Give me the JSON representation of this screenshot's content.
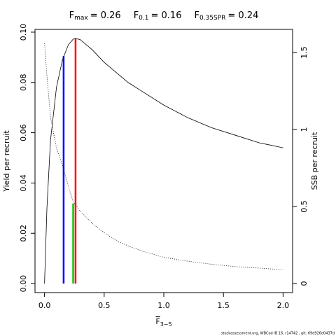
{
  "chart_data": {
    "type": "line",
    "title_items": [
      {
        "symbol": "F",
        "sub": "max",
        "text": "= 0.26"
      },
      {
        "symbol": "F",
        "sub": "0.1",
        "text": "= 0.16"
      },
      {
        "symbol": "F",
        "sub": "0.35SPR",
        "text": "= 0.24"
      }
    ],
    "xlabel": {
      "symbol": "F",
      "sub": "3−5"
    },
    "ylabel": "Yield per recruit",
    "y2label": "SSB per recruit",
    "footnote": "stockassessment.org, WBCod IB 16, r14742 , git: 69d926d0437d",
    "x": [
      0,
      0.02,
      0.05,
      0.1,
      0.15,
      0.2,
      0.24,
      0.26,
      0.3,
      0.4,
      0.5,
      0.6,
      0.7,
      0.8,
      1.0,
      1.2,
      1.4,
      1.6,
      1.8,
      2.0
    ],
    "series": [
      {
        "color": "#000000",
        "dash": "solid",
        "axis": "y",
        "values": [
          0,
          0.03,
          0.057,
          0.078,
          0.089,
          0.095,
          0.0972,
          0.0975,
          0.097,
          0.093,
          0.088,
          0.084,
          0.08,
          0.077,
          0.071,
          0.066,
          0.062,
          0.059,
          0.056,
          0.054
        ]
      },
      {
        "color": "#000000",
        "dash": "dotted",
        "axis": "y2",
        "values": [
          1.56,
          1.35,
          1.08,
          0.88,
          0.77,
          0.63,
          0.53,
          0.51,
          0.47,
          0.39,
          0.33,
          0.28,
          0.245,
          0.215,
          0.17,
          0.145,
          0.125,
          0.11,
          0.1,
          0.09
        ]
      }
    ],
    "vlines": [
      {
        "x": 0.16,
        "y": 0.0905,
        "color": "#0000ff",
        "axis": "y"
      },
      {
        "x": 0.24,
        "y": 0.52,
        "color": "#00cc00",
        "axis": "y2"
      },
      {
        "x": 0.26,
        "y": 0.0975,
        "color": "#ff0000",
        "axis": "y"
      }
    ],
    "xlim": [
      -0.08,
      2.08
    ],
    "ylim": [
      -0.0036,
      0.1011
    ],
    "y2lim": [
      -0.059,
      1.65
    ],
    "xticks": [
      {
        "value": 0,
        "label": "0.0"
      },
      0.5,
      {
        "value": 1,
        "label": "1.0"
      },
      1.5,
      {
        "value": 2,
        "label": "2.0"
      }
    ],
    "yticks": [
      {
        "value": 0,
        "label": "0.00"
      },
      0.02,
      0.04,
      0.06,
      0.08,
      {
        "value": 0.1,
        "label": "0.10"
      }
    ],
    "y2ticks": [
      0,
      0.5,
      1,
      1.5
    ]
  }
}
